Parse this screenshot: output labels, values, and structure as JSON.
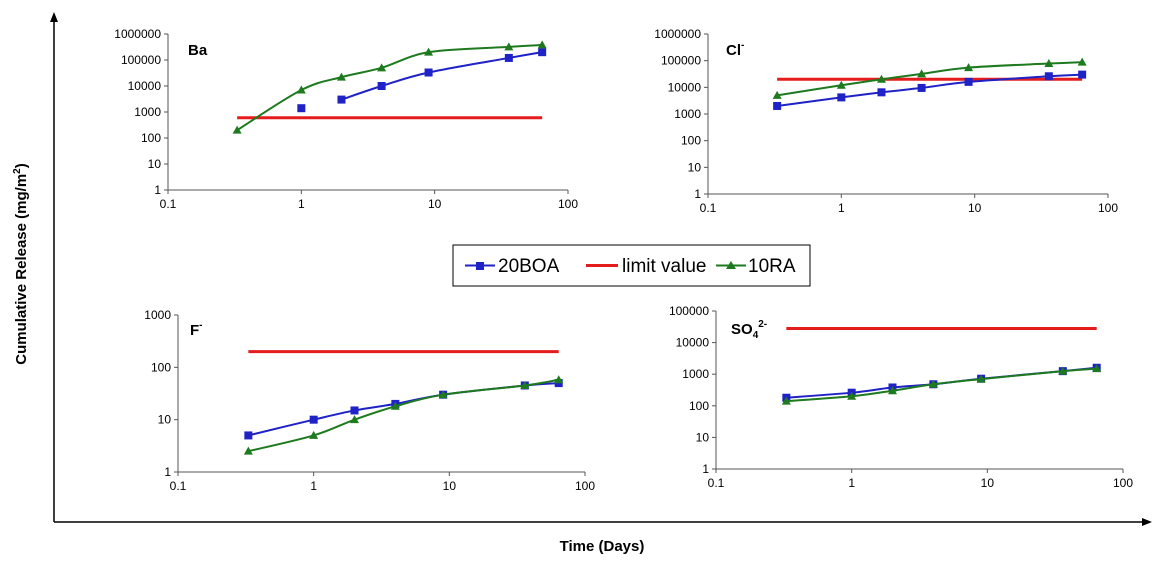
{
  "figure": {
    "ylabel": "Cumulative Release (mg/m",
    "ylabel_sup": "2",
    "ylabel_end": ")",
    "xlabel": "Time (Days)"
  },
  "legend": [
    {
      "name": "20BOA",
      "color": "#1f22c6",
      "marker": "square"
    },
    {
      "name": "limit value",
      "color": "#e41c1c",
      "marker": "none"
    },
    {
      "name": "10RA",
      "color": "#1e7a1e",
      "marker": "triangle"
    }
  ],
  "chart_data": [
    {
      "type": "line",
      "label": "Ba",
      "label_sup": "",
      "x_scale": "log",
      "y_scale": "log",
      "xlim": [
        0.1,
        100
      ],
      "ylim": [
        1,
        1000000
      ],
      "xticks": [
        "0.1",
        "1",
        "10",
        "100"
      ],
      "yticks": [
        "1",
        "10",
        "100",
        "1000",
        "10000",
        "100000",
        "1000000"
      ],
      "series": [
        {
          "name": "20BOA",
          "line": "partial",
          "x": [
            1,
            2,
            4,
            9,
            36,
            64
          ],
          "y": [
            1400,
            3000,
            10000,
            33000,
            120000,
            200000
          ]
        },
        {
          "name": "limit value",
          "x": [
            0.33,
            64
          ],
          "y": [
            600,
            600
          ]
        },
        {
          "name": "10RA",
          "x": [
            0.33,
            1,
            2,
            4,
            9,
            36,
            64
          ],
          "y": [
            200,
            7000,
            22000,
            50000,
            200000,
            320000,
            380000
          ]
        }
      ]
    },
    {
      "type": "line",
      "label": "Cl",
      "label_sup": "-",
      "x_scale": "log",
      "y_scale": "log",
      "xlim": [
        0.1,
        100
      ],
      "ylim": [
        1,
        1000000
      ],
      "xticks": [
        "0.1",
        "1",
        "10",
        "100"
      ],
      "yticks": [
        "1",
        "10",
        "100",
        "1000",
        "10000",
        "100000",
        "1000000"
      ],
      "series": [
        {
          "name": "20BOA",
          "x": [
            0.33,
            1,
            2,
            4,
            9,
            36,
            64
          ],
          "y": [
            2000,
            4200,
            6500,
            9500,
            16000,
            26000,
            30000
          ]
        },
        {
          "name": "limit value",
          "x": [
            0.33,
            64
          ],
          "y": [
            20000,
            20000
          ]
        },
        {
          "name": "10RA",
          "x": [
            0.33,
            1,
            2,
            4,
            9,
            36,
            64
          ],
          "y": [
            5000,
            12000,
            20000,
            32000,
            55000,
            78000,
            88000
          ]
        }
      ]
    },
    {
      "type": "line",
      "label": "F",
      "label_sup": "-",
      "x_scale": "log",
      "y_scale": "log",
      "xlim": [
        0.1,
        100
      ],
      "ylim": [
        1,
        1000
      ],
      "xticks": [
        "0.1",
        "1",
        "10",
        "100"
      ],
      "yticks": [
        "1",
        "10",
        "100",
        "1000"
      ],
      "series": [
        {
          "name": "20BOA",
          "x": [
            0.33,
            1,
            2,
            4,
            9,
            36,
            64
          ],
          "y": [
            5,
            10,
            15,
            20,
            30,
            45,
            50
          ]
        },
        {
          "name": "limit value",
          "x": [
            0.33,
            64
          ],
          "y": [
            200,
            200
          ]
        },
        {
          "name": "10RA",
          "x": [
            0.33,
            1,
            2,
            4,
            9,
            36,
            64
          ],
          "y": [
            2.5,
            5,
            10,
            18,
            30,
            45,
            58
          ]
        }
      ]
    },
    {
      "type": "line",
      "label": "SO",
      "label_sub": "4",
      "label_sup": "2-",
      "x_scale": "log",
      "y_scale": "log",
      "xlim": [
        0.1,
        100
      ],
      "ylim": [
        1,
        100000
      ],
      "xticks": [
        "0.1",
        "1",
        "10",
        "100"
      ],
      "yticks": [
        "1",
        "10",
        "100",
        "1000",
        "10000",
        "100000"
      ],
      "series": [
        {
          "name": "20BOA",
          "x": [
            0.33,
            1,
            2,
            4,
            9,
            36,
            64
          ],
          "y": [
            180,
            260,
            380,
            480,
            720,
            1250,
            1600
          ]
        },
        {
          "name": "limit value",
          "x": [
            0.33,
            64
          ],
          "y": [
            28000,
            28000
          ]
        },
        {
          "name": "10RA",
          "x": [
            0.33,
            1,
            2,
            4,
            9,
            36,
            64
          ],
          "y": [
            140,
            200,
            300,
            480,
            700,
            1250,
            1500
          ]
        }
      ]
    }
  ]
}
